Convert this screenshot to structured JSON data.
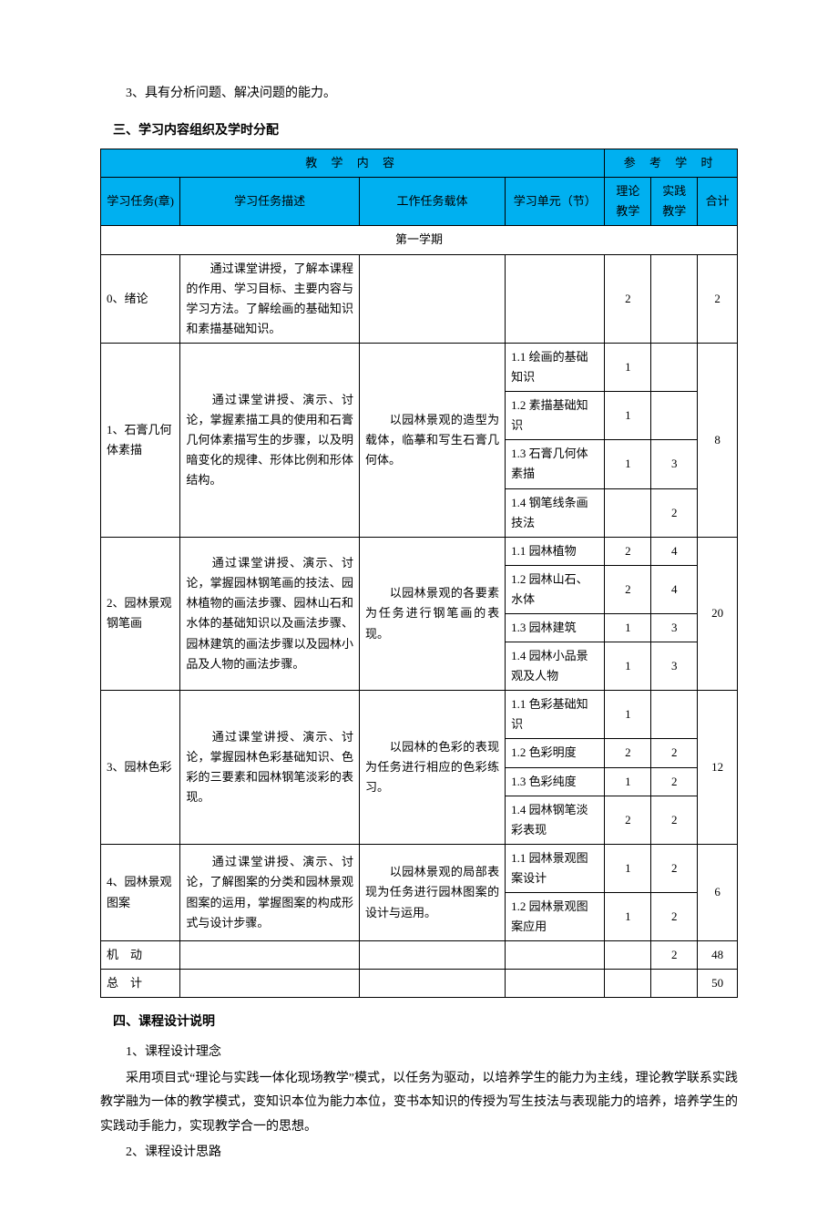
{
  "intro_line": "3、具有分析问题、解决问题的能力。",
  "section3": {
    "title": "三、学习内容组织及学时分配",
    "header": {
      "content_group": "教 学 内 容",
      "hours_group": "参 考 学 时",
      "task": "学习任务(章)",
      "desc": "学习任务描述",
      "carrier": "工作任务载体",
      "unit": "学习单元（节）",
      "theory": "理论教学",
      "practice": "实践教学",
      "total": "合计"
    },
    "semester_label": "第一学期",
    "colors": {
      "header_bg": "#00b0f0",
      "border": "#000000"
    },
    "rows": [
      {
        "task": "0、绪论",
        "desc": "　　通过课堂讲授，了解本课程的作用、学习目标、主要内容与学习方法。了解绘画的基础知识和素描基础知识。",
        "carrier": "",
        "units": [
          {
            "name": "",
            "theory": "2",
            "practice": "",
            "total": "2"
          }
        ],
        "total": "2"
      },
      {
        "task": "1、石膏几何体素描",
        "desc": "　　通过课堂讲授、演示、讨论，掌握素描工具的使用和石膏几何体素描写生的步骤，以及明暗变化的规律、形体比例和形体结构。",
        "carrier": "　　以园林景观的造型为载体，临摹和写生石膏几何体。",
        "units": [
          {
            "name": "1.1 绘画的基础知识",
            "theory": "1",
            "practice": ""
          },
          {
            "name": "1.2 素描基础知识",
            "theory": "1",
            "practice": ""
          },
          {
            "name": "1.3 石膏几何体素描",
            "theory": "1",
            "practice": "3"
          },
          {
            "name": "1.4 钢笔线条画技法",
            "theory": "",
            "practice": "2"
          }
        ],
        "total": "8"
      },
      {
        "task": "2、园林景观钢笔画",
        "desc": "　　通过课堂讲授、演示、讨论，掌握园林钢笔画的技法、园林植物的画法步骤、园林山石和水体的基础知识以及画法步骤、园林建筑的画法步骤以及园林小品及人物的画法步骤。",
        "carrier": "　　以园林景观的各要素为任务进行钢笔画的表现。",
        "units": [
          {
            "name": "1.1 园林植物",
            "theory": "2",
            "practice": "4"
          },
          {
            "name": "1.2 园林山石、水体",
            "theory": "2",
            "practice": "4"
          },
          {
            "name": "1.3 园林建筑",
            "theory": "1",
            "practice": "3"
          },
          {
            "name": "1.4 园林小品景观及人物",
            "theory": "1",
            "practice": "3"
          }
        ],
        "total": "20"
      },
      {
        "task": "3、园林色彩",
        "desc": "　　通过课堂讲授、演示、讨论，掌握园林色彩基础知识、色彩的三要素和园林钢笔淡彩的表现。",
        "carrier": "　　以园林的色彩的表现为任务进行相应的色彩练习。",
        "units": [
          {
            "name": "1.1 色彩基础知识",
            "theory": "1",
            "practice": ""
          },
          {
            "name": "1.2 色彩明度",
            "theory": "2",
            "practice": "2"
          },
          {
            "name": "1.3 色彩纯度",
            "theory": "1",
            "practice": "2"
          },
          {
            "name": "1.4 园林钢笔淡彩表现",
            "theory": "2",
            "practice": "2"
          }
        ],
        "total": "12"
      },
      {
        "task": "4、园林景观图案",
        "desc": "　　通过课堂讲授、演示、讨论，了解图案的分类和园林景观图案的运用，掌握图案的构成形式与设计步骤。",
        "carrier": "　　以园林景观的局部表现为任务进行园林图案的设计与运用。",
        "units": [
          {
            "name": "1.1 园林景观图案设计",
            "theory": "1",
            "practice": "2"
          },
          {
            "name": "1.2 园林景观图案应用",
            "theory": "1",
            "practice": "2"
          }
        ],
        "total": "6"
      }
    ],
    "footer": {
      "flex": {
        "label": "机　动",
        "theory": "",
        "practice": "2",
        "total": "48"
      },
      "total": {
        "label": "总　计",
        "theory": "",
        "practice": "",
        "total": "50"
      }
    }
  },
  "section4": {
    "title": "四、课程设计说明",
    "sub1": {
      "title": "1、课程设计理念",
      "text": "采用项目式“理论与实践一体化现场教学”模式，以任务为驱动，以培养学生的能力为主线，理论教学联系实践教学融为一体的教学模式，变知识本位为能力本位，变书本知识的传授为写生技法与表现能力的培养，培养学生的实践动手能力，实现教学合一的思想。"
    },
    "sub2": {
      "title": "2、课程设计思路"
    }
  }
}
